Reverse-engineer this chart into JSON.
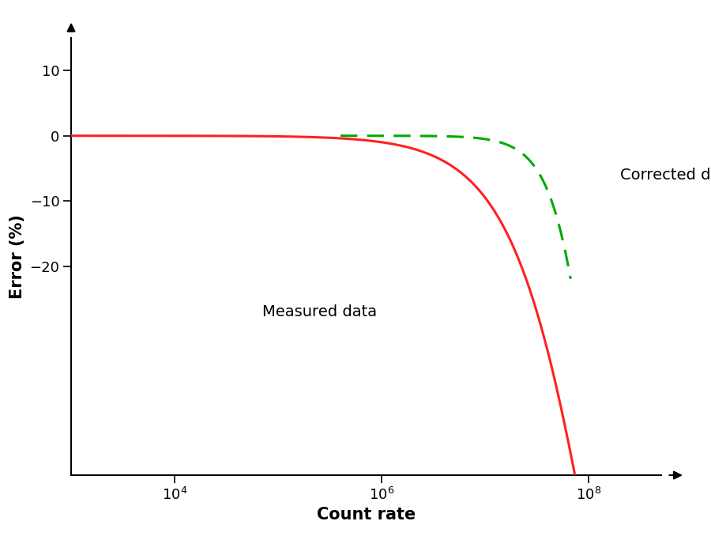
{
  "xlabel": "Count rate",
  "ylabel": "Error (%)",
  "xlim": [
    1000.0,
    500000000.0
  ],
  "ylim": [
    -52,
    15
  ],
  "yticks": [
    -20,
    -10,
    0,
    10
  ],
  "xtick_vals": [
    10000.0,
    1000000.0,
    100000000.0
  ],
  "tau": 1e-08,
  "N_meas_start": 1000.0,
  "N_meas_end": 115000000.0,
  "N_corr_start": 400000.0,
  "N_corr_end": 400000000.0,
  "red_color": "#FF2020",
  "green_color": "#00AA00",
  "line_width": 2.2,
  "label_measured": "Measured data",
  "label_corrected": "Corrected data",
  "label_fontsize": 14,
  "axis_label_fontsize": 15,
  "tick_fontsize": 13
}
